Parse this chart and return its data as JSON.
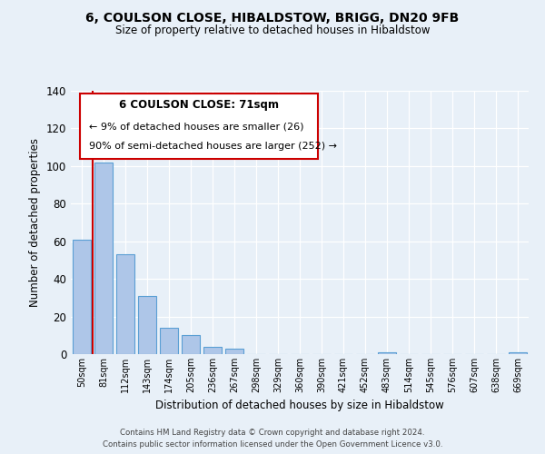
{
  "title": "6, COULSON CLOSE, HIBALDSTOW, BRIGG, DN20 9FB",
  "subtitle": "Size of property relative to detached houses in Hibaldstow",
  "xlabel": "Distribution of detached houses by size in Hibaldstow",
  "ylabel": "Number of detached properties",
  "bar_labels": [
    "50sqm",
    "81sqm",
    "112sqm",
    "143sqm",
    "174sqm",
    "205sqm",
    "236sqm",
    "267sqm",
    "298sqm",
    "329sqm",
    "360sqm",
    "390sqm",
    "421sqm",
    "452sqm",
    "483sqm",
    "514sqm",
    "545sqm",
    "576sqm",
    "607sqm",
    "638sqm",
    "669sqm"
  ],
  "bar_values": [
    61,
    102,
    53,
    31,
    14,
    10,
    4,
    3,
    0,
    0,
    0,
    0,
    0,
    0,
    1,
    0,
    0,
    0,
    0,
    0,
    1
  ],
  "bar_color": "#aec6e8",
  "bar_edgecolor": "#5a9fd4",
  "ylim": [
    0,
    140
  ],
  "yticks": [
    0,
    20,
    40,
    60,
    80,
    100,
    120,
    140
  ],
  "annotation_title": "6 COULSON CLOSE: 71sqm",
  "annotation_line1": "← 9% of detached houses are smaller (26)",
  "annotation_line2": "90% of semi-detached houses are larger (252) →",
  "annotation_box_color": "#ffffff",
  "annotation_box_edgecolor": "#cc0000",
  "background_color": "#e8f0f8",
  "footer_line1": "Contains HM Land Registry data © Crown copyright and database right 2024.",
  "footer_line2": "Contains public sector information licensed under the Open Government Licence v3.0."
}
